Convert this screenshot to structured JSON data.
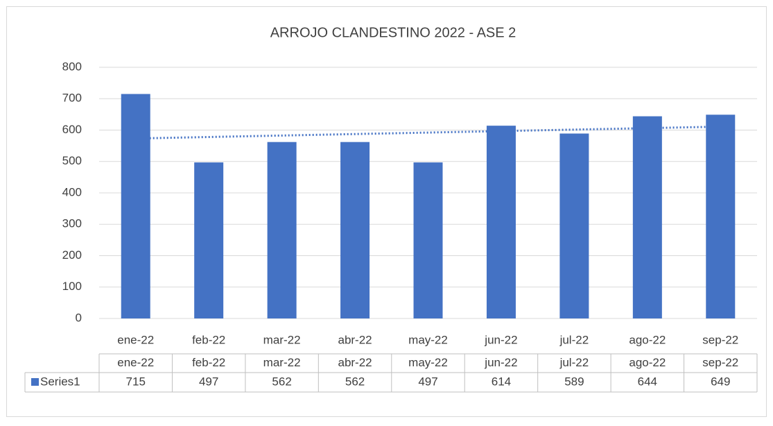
{
  "chart_data": {
    "type": "bar",
    "title": "ARROJO CLANDESTINO 2022 - ASE 2",
    "categories": [
      "ene-22",
      "feb-22",
      "mar-22",
      "abr-22",
      "may-22",
      "jun-22",
      "jul-22",
      "ago-22",
      "sep-22"
    ],
    "series": [
      {
        "name": "Series1",
        "color": "#4472c4",
        "values": [
          715,
          497,
          562,
          562,
          497,
          614,
          589,
          644,
          649
        ]
      }
    ],
    "ylim": [
      0,
      800
    ],
    "yticks": [
      0,
      100,
      200,
      300,
      400,
      500,
      600,
      700,
      800
    ],
    "grid": true,
    "trendline": "linear",
    "data_table": true
  }
}
